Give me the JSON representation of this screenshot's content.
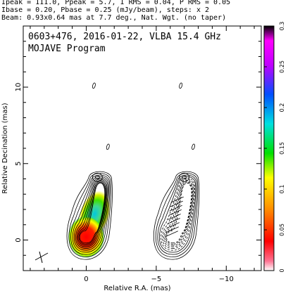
{
  "header": {
    "line1": "Ipeak = 111.0, Ppeak = 5.7, I RMS = 0.04, P RMS = 0.05",
    "line2": "Ibase = 0.20, Pbase = 0.25 (mJy/beam), steps: x 2",
    "line3": "Beam: 0.93x0.64 mas at 7.7 deg., Nat. Wgt. (no taper)"
  },
  "chart_data": {
    "type": "heatmap",
    "title": "0603+476, 2016-01-22, VLBA 15.4 GHz",
    "subtitle": "MOJAVE Program",
    "xlabel": "Relative R.A. (mas)",
    "ylabel": "Relative Decination (mas)",
    "xlim": [
      4.5,
      -12.5
    ],
    "ylim": [
      -2.0,
      14.0
    ],
    "x_ticks": [
      0,
      -5,
      -10
    ],
    "x_tick_labels": [
      "0",
      "−5",
      "−10"
    ],
    "y_ticks": [
      0,
      5,
      10
    ],
    "y_tick_labels": [
      "0",
      "5",
      "10"
    ],
    "colorbar": {
      "range": [
        0,
        0.3
      ],
      "ticks": [
        0,
        0.05,
        0.1,
        0.15,
        0.2,
        0.25,
        0.3
      ],
      "tick_labels": [
        "0",
        "0.05",
        "0.1",
        "0.15",
        "0.2",
        "0.25",
        "0.3"
      ]
    },
    "panels": [
      {
        "name": "total-intensity",
        "offset_ra": 0
      },
      {
        "name": "polarization",
        "offset_ra": -6.2
      }
    ],
    "core": {
      "ra": 0.0,
      "dec": 0.2
    },
    "jet_knot": {
      "ra": -0.8,
      "dec": 3.5
    },
    "isolated_components": [
      {
        "ra": -0.55,
        "dec": 10.1
      },
      {
        "ra": -1.55,
        "dec": 6.1
      },
      {
        "ra": -6.75,
        "dec": 10.1
      },
      {
        "ra": -7.65,
        "dec": 6.1
      }
    ]
  }
}
